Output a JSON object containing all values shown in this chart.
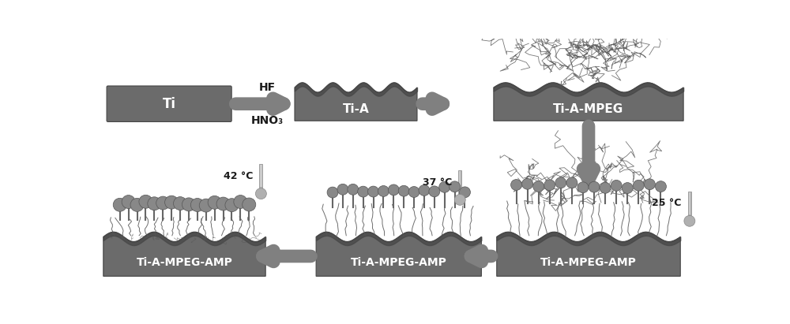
{
  "bg_color": "#ffffff",
  "slab_color": "#6b6b6b",
  "slab_edge": "#444444",
  "chain_color": "#555555",
  "arrow_color": "#808080",
  "text_white": "#ffffff",
  "text_black": "#1a1a1a",
  "thermo_color": "#b0b0b0",
  "labels": {
    "Ti": "Ti",
    "Ti_A": "Ti-A",
    "Ti_A_MPEG": "Ti-A-MPEG",
    "Ti_A_MPEG_AMP": "Ti-A-MPEG-AMP"
  },
  "HF": "HF",
  "HNO3": "HNO₃",
  "temps": [
    "25 °C",
    "37 °C",
    "42 °C"
  ]
}
